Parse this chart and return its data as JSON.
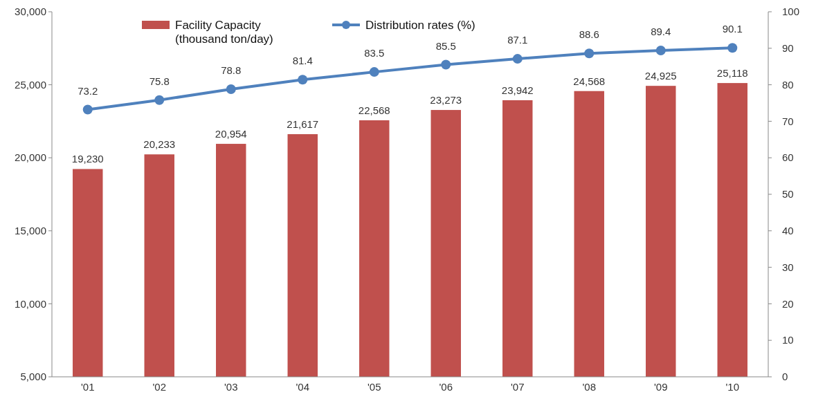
{
  "chart_data": {
    "type": "bar",
    "categories": [
      "'01",
      "'02",
      "'03",
      "'04",
      "'05",
      "'06",
      "'07",
      "'08",
      "'09",
      "'10"
    ],
    "series": [
      {
        "name": "Facility Capacity\n(thousand ton/day)",
        "color": "#c0504d",
        "values": [
          19230,
          20233,
          20954,
          21617,
          22568,
          23273,
          23942,
          24568,
          24925,
          25118
        ],
        "value_labels": [
          "19,230",
          "20,233",
          "20,954",
          "21,617",
          "22,568",
          "23,273",
          "23,942",
          "24,568",
          "24,925",
          "25,118"
        ]
      },
      {
        "name": "Distribution rates (%)",
        "type": "line",
        "axis": "y2",
        "color": "#4f81bd",
        "values": [
          73.2,
          75.8,
          78.8,
          81.4,
          83.5,
          85.5,
          87.1,
          88.6,
          89.4,
          90.1
        ]
      }
    ],
    "ylim": [
      5000,
      30000
    ],
    "yticks": [
      {
        "value": 5000,
        "label": "5,000"
      },
      {
        "value": 10000,
        "label": "10,000"
      },
      {
        "value": 15000,
        "label": "15,000"
      },
      {
        "value": 20000,
        "label": "20,000"
      },
      {
        "value": 25000,
        "label": "25,000"
      },
      {
        "value": 30000,
        "label": "30,000"
      }
    ],
    "y2lim": [
      0,
      100
    ],
    "y2ticks": [
      0,
      10,
      20,
      30,
      40,
      50,
      60,
      70,
      80,
      90,
      100
    ],
    "data_labels": true,
    "legend": "top left",
    "marker": "circle",
    "grid": false
  }
}
